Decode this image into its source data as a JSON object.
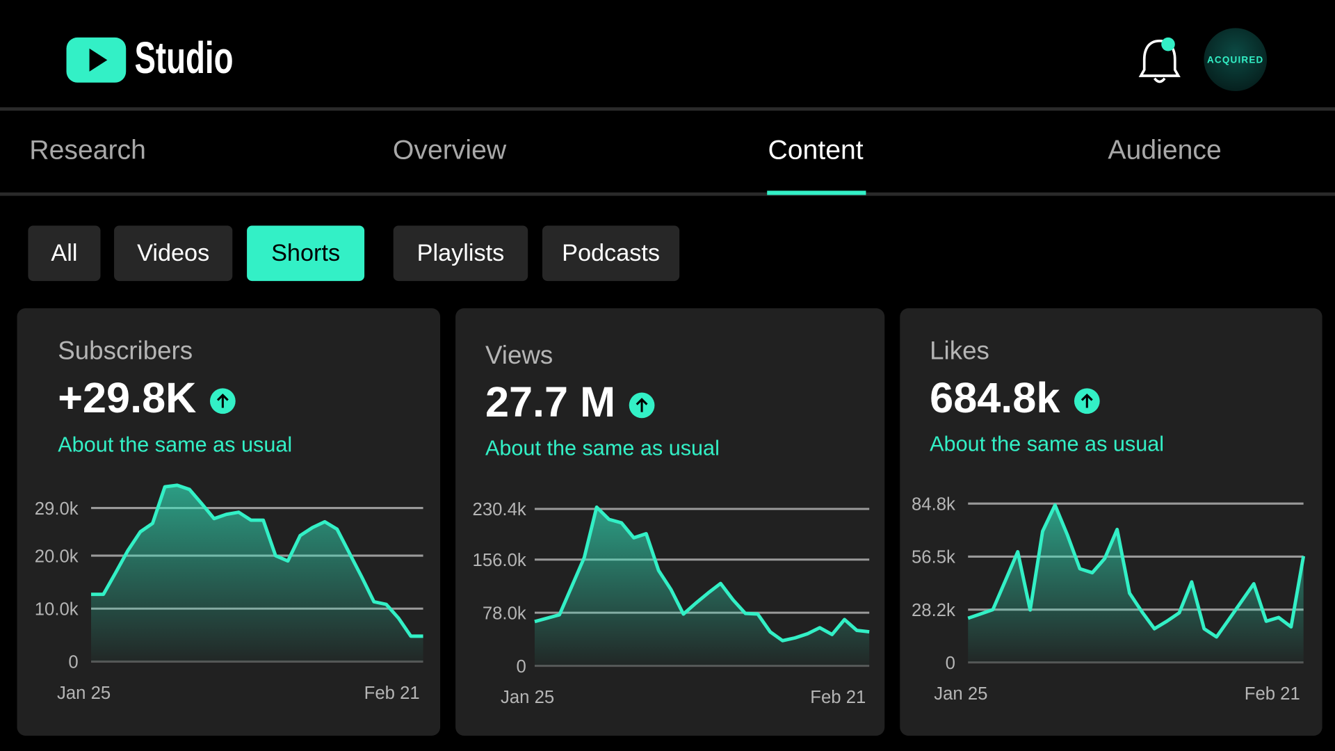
{
  "header": {
    "logo": "Studio",
    "avatar": "ACQUIRED"
  },
  "tabs": {
    "items": [
      "Research",
      "Overview",
      "Content",
      "Audience"
    ],
    "active": 2
  },
  "filters": {
    "items": [
      "All",
      "Videos",
      "Shorts",
      "Playlists",
      "Podcasts"
    ],
    "active": 2
  },
  "chart_data": [
    {
      "type": "area",
      "title": "Subscribers",
      "headline": "+29.8K",
      "note": "About the same as usual",
      "categories": [
        "Jan 25",
        null,
        null,
        null,
        null,
        null,
        null,
        null,
        null,
        null,
        null,
        null,
        null,
        null,
        null,
        null,
        null,
        null,
        null,
        null,
        null,
        null,
        null,
        null,
        null,
        null,
        null,
        "Feb 21"
      ],
      "values": [
        12700,
        12700,
        16800,
        21000,
        24500,
        26100,
        33000,
        33300,
        32500,
        29800,
        27000,
        27800,
        28200,
        26700,
        26700,
        20000,
        19000,
        23800,
        25300,
        26400,
        25000,
        20500,
        16000,
        11300,
        10800,
        8200,
        4800,
        4800
      ],
      "color": "#33f0c6",
      "ylim": [
        0,
        34000
      ],
      "yticks": [
        0,
        {
          "value": 10000,
          "label": "10.0k"
        },
        {
          "value": 20000,
          "label": "20.0k"
        },
        {
          "value": 29000,
          "label": "29.0k"
        }
      ],
      "grid": true
    },
    {
      "type": "area",
      "title": "Views",
      "headline": "27.7 M",
      "note": "About the same as usual",
      "categories": [
        "Jan 25",
        null,
        null,
        null,
        null,
        null,
        null,
        null,
        null,
        null,
        null,
        null,
        null,
        null,
        null,
        null,
        null,
        null,
        null,
        null,
        null,
        null,
        null,
        null,
        null,
        null,
        null,
        "Feb 21"
      ],
      "values": [
        65000,
        70000,
        75000,
        117000,
        159000,
        233000,
        215000,
        210000,
        188000,
        194000,
        140000,
        112000,
        76000,
        92000,
        107000,
        121000,
        97000,
        77000,
        76000,
        50000,
        37000,
        41000,
        47000,
        56000,
        46000,
        68000,
        52000,
        50000
      ],
      "color": "#33f0c6",
      "ylim": [
        0,
        250000
      ],
      "yticks": [
        0,
        {
          "value": 78000,
          "label": "78.0k"
        },
        {
          "value": 156000,
          "label": "156.0k"
        },
        {
          "value": 230400,
          "label": "230.4k"
        }
      ],
      "grid": true
    },
    {
      "type": "area",
      "title": "Likes",
      "headline": "684.8k",
      "note": "About the same as usual",
      "categories": [
        "Jan 25",
        null,
        null,
        null,
        null,
        null,
        null,
        null,
        null,
        null,
        null,
        null,
        null,
        null,
        null,
        null,
        null,
        null,
        null,
        null,
        null,
        null,
        null,
        null,
        null,
        null,
        null,
        "Feb 21"
      ],
      "values": [
        23600,
        25900,
        28200,
        43600,
        59100,
        28000,
        70000,
        84000,
        68000,
        50000,
        47900,
        55500,
        71000,
        37000,
        27000,
        18000,
        22000,
        26500,
        43000,
        18000,
        13600,
        23000,
        32500,
        42000,
        22000,
        24000,
        19000,
        56800
      ],
      "color": "#33f0c6",
      "ylim": [
        0,
        90000
      ],
      "yticks": [
        0,
        {
          "value": 28200,
          "label": "28.2k"
        },
        {
          "value": 56500,
          "label": "56.5k"
        },
        {
          "value": 84800,
          "label": "84.8k"
        }
      ],
      "grid": true
    }
  ]
}
